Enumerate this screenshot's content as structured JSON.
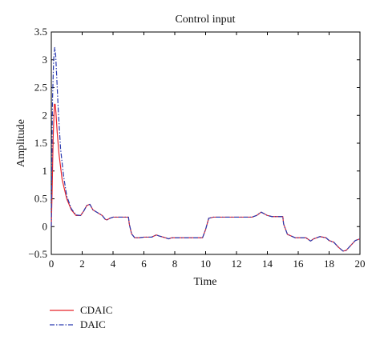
{
  "chart_data": {
    "type": "line",
    "title": "Control input",
    "xlabel": "Time",
    "ylabel": "Amplitude",
    "xlim": [
      0,
      20
    ],
    "ylim": [
      -0.5,
      3.5
    ],
    "xticks": [
      "0",
      "2",
      "4",
      "6",
      "8",
      "10",
      "12",
      "14",
      "16",
      "18",
      "20"
    ],
    "yticks": [
      "−0.5",
      "0",
      "0.5",
      "1",
      "1.5",
      "2",
      "2.5",
      "3",
      "3.5"
    ],
    "grid": false,
    "legend_position": "below plot, left",
    "series": [
      {
        "name": "CDAIC",
        "color": "#e8242b",
        "style": "solid",
        "x": [
          0,
          0.05,
          0.12,
          0.2,
          0.25,
          0.3,
          0.38,
          0.5,
          0.7,
          1.0,
          1.3,
          1.6,
          1.9,
          2.1,
          2.3,
          2.5,
          2.7,
          3.0,
          3.3,
          3.5,
          3.6,
          3.8,
          4.0,
          4.2,
          4.5,
          5.0,
          5.05,
          5.2,
          5.4,
          5.7,
          6.0,
          6.5,
          6.8,
          7.0,
          7.4,
          7.6,
          7.8,
          8.0,
          8.5,
          9.0,
          9.5,
          9.8,
          10.0,
          10.2,
          10.5,
          11.0,
          11.5,
          12.0,
          12.5,
          13.0,
          13.3,
          13.6,
          13.8,
          14.0,
          14.3,
          14.7,
          15.0,
          15.05,
          15.3,
          15.8,
          16.0,
          16.5,
          16.8,
          17.0,
          17.4,
          17.8,
          18.0,
          18.3,
          18.6,
          18.9,
          19.1,
          19.4,
          19.7,
          20.0
        ],
        "y": [
          0,
          0.6,
          1.6,
          2.2,
          2.2,
          2.05,
          1.7,
          1.3,
          0.85,
          0.5,
          0.3,
          0.2,
          0.2,
          0.28,
          0.38,
          0.4,
          0.3,
          0.25,
          0.2,
          0.13,
          0.12,
          0.15,
          0.17,
          0.17,
          0.17,
          0.17,
          0.05,
          -0.13,
          -0.2,
          -0.2,
          -0.19,
          -0.19,
          -0.15,
          -0.17,
          -0.2,
          -0.22,
          -0.2,
          -0.2,
          -0.2,
          -0.2,
          -0.2,
          -0.2,
          -0.05,
          0.15,
          0.17,
          0.17,
          0.17,
          0.17,
          0.17,
          0.17,
          0.2,
          0.26,
          0.23,
          0.2,
          0.18,
          0.18,
          0.18,
          0.05,
          -0.14,
          -0.2,
          -0.2,
          -0.2,
          -0.26,
          -0.22,
          -0.18,
          -0.2,
          -0.25,
          -0.28,
          -0.37,
          -0.44,
          -0.43,
          -0.34,
          -0.25,
          -0.22
        ]
      },
      {
        "name": "DAIC",
        "color": "#2a3bb0",
        "style": "dashdot",
        "x": [
          0,
          0.03,
          0.08,
          0.15,
          0.22,
          0.28,
          0.35,
          0.45,
          0.6,
          0.8,
          1.0,
          1.3,
          1.6,
          1.9,
          2.1,
          2.3,
          2.5,
          2.7,
          3.0,
          3.3,
          3.5,
          3.6,
          3.8,
          4.0,
          4.2,
          4.5,
          5.0,
          5.05,
          5.2,
          5.4,
          5.7,
          6.0,
          6.5,
          6.8,
          7.0,
          7.4,
          7.6,
          7.8,
          8.0,
          8.5,
          9.0,
          9.5,
          9.8,
          10.0,
          10.2,
          10.5,
          11.0,
          11.5,
          12.0,
          12.5,
          13.0,
          13.3,
          13.6,
          13.8,
          14.0,
          14.3,
          14.7,
          15.0,
          15.05,
          15.3,
          15.8,
          16.0,
          16.5,
          16.8,
          17.0,
          17.4,
          17.8,
          18.0,
          18.3,
          18.6,
          18.9,
          19.1,
          19.4,
          19.7,
          20.0
        ],
        "y": [
          0,
          1.0,
          2.3,
          3.0,
          3.22,
          3.1,
          2.7,
          2.1,
          1.4,
          0.9,
          0.55,
          0.32,
          0.21,
          0.2,
          0.28,
          0.38,
          0.4,
          0.3,
          0.25,
          0.2,
          0.13,
          0.12,
          0.15,
          0.17,
          0.17,
          0.17,
          0.17,
          0.05,
          -0.13,
          -0.2,
          -0.2,
          -0.19,
          -0.19,
          -0.15,
          -0.17,
          -0.2,
          -0.22,
          -0.2,
          -0.2,
          -0.2,
          -0.2,
          -0.2,
          -0.2,
          -0.05,
          0.15,
          0.17,
          0.17,
          0.17,
          0.17,
          0.17,
          0.17,
          0.2,
          0.26,
          0.23,
          0.2,
          0.18,
          0.18,
          0.18,
          0.05,
          -0.14,
          -0.2,
          -0.2,
          -0.2,
          -0.26,
          -0.22,
          -0.18,
          -0.2,
          -0.25,
          -0.28,
          -0.37,
          -0.44,
          -0.43,
          -0.34,
          -0.25,
          -0.22
        ]
      }
    ]
  }
}
